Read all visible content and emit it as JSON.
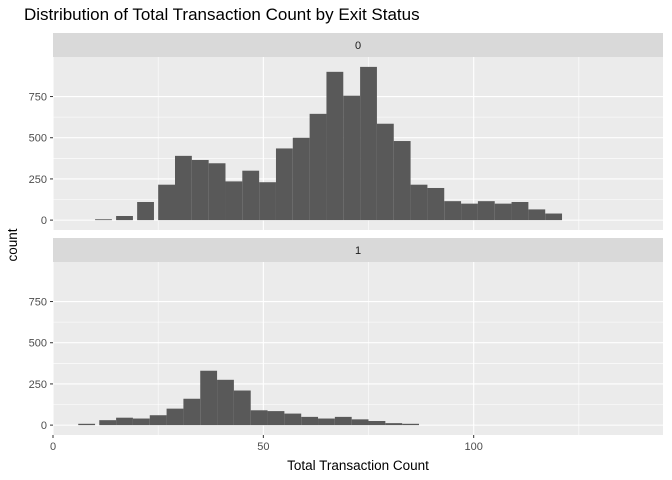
{
  "chart_data": {
    "type": "bar",
    "title": "Distribution of Total Transaction Count by Exit Status",
    "xlabel": "Total Transaction Count",
    "ylabel": "count",
    "xlim": [
      0,
      145
    ],
    "ylim": [
      -60,
      990
    ],
    "x_ticks": [
      0,
      50,
      100
    ],
    "y_ticks": [
      0,
      250,
      500,
      750
    ],
    "bin_width": 4,
    "panels": [
      {
        "strip_label": "0",
        "bins": [
          {
            "x0": 10,
            "count": 5
          },
          {
            "x0": 15,
            "count": 25
          },
          {
            "x0": 20,
            "count": 110
          },
          {
            "x0": 25,
            "count": 215
          },
          {
            "x0": 29,
            "count": 390
          },
          {
            "x0": 33,
            "count": 365
          },
          {
            "x0": 37,
            "count": 345
          },
          {
            "x0": 41,
            "count": 235
          },
          {
            "x0": 45,
            "count": 300
          },
          {
            "x0": 49,
            "count": 230
          },
          {
            "x0": 53,
            "count": 435
          },
          {
            "x0": 57,
            "count": 500
          },
          {
            "x0": 61,
            "count": 645
          },
          {
            "x0": 65,
            "count": 900
          },
          {
            "x0": 69,
            "count": 755
          },
          {
            "x0": 73,
            "count": 930
          },
          {
            "x0": 77,
            "count": 585
          },
          {
            "x0": 81,
            "count": 480
          },
          {
            "x0": 85,
            "count": 215
          },
          {
            "x0": 89,
            "count": 195
          },
          {
            "x0": 93,
            "count": 115
          },
          {
            "x0": 97,
            "count": 100
          },
          {
            "x0": 101,
            "count": 115
          },
          {
            "x0": 105,
            "count": 100
          },
          {
            "x0": 109,
            "count": 110
          },
          {
            "x0": 113,
            "count": 65
          },
          {
            "x0": 117,
            "count": 40
          }
        ]
      },
      {
        "strip_label": "1",
        "bins": [
          {
            "x0": 6,
            "count": 8
          },
          {
            "x0": 11,
            "count": 30
          },
          {
            "x0": 15,
            "count": 45
          },
          {
            "x0": 19,
            "count": 40
          },
          {
            "x0": 23,
            "count": 60
          },
          {
            "x0": 27,
            "count": 100
          },
          {
            "x0": 31,
            "count": 160
          },
          {
            "x0": 35,
            "count": 330
          },
          {
            "x0": 39,
            "count": 275
          },
          {
            "x0": 43,
            "count": 210
          },
          {
            "x0": 47,
            "count": 90
          },
          {
            "x0": 51,
            "count": 85
          },
          {
            "x0": 55,
            "count": 70
          },
          {
            "x0": 59,
            "count": 50
          },
          {
            "x0": 63,
            "count": 40
          },
          {
            "x0": 67,
            "count": 50
          },
          {
            "x0": 71,
            "count": 35
          },
          {
            "x0": 75,
            "count": 25
          },
          {
            "x0": 79,
            "count": 12
          },
          {
            "x0": 83,
            "count": 8
          }
        ]
      }
    ],
    "colors": {
      "panel_background": "#EBEBEB",
      "strip_background": "#D9D9D9",
      "grid": "#FFFFFF",
      "bar_fill": "#595959"
    },
    "grid": true,
    "legend": "none"
  }
}
